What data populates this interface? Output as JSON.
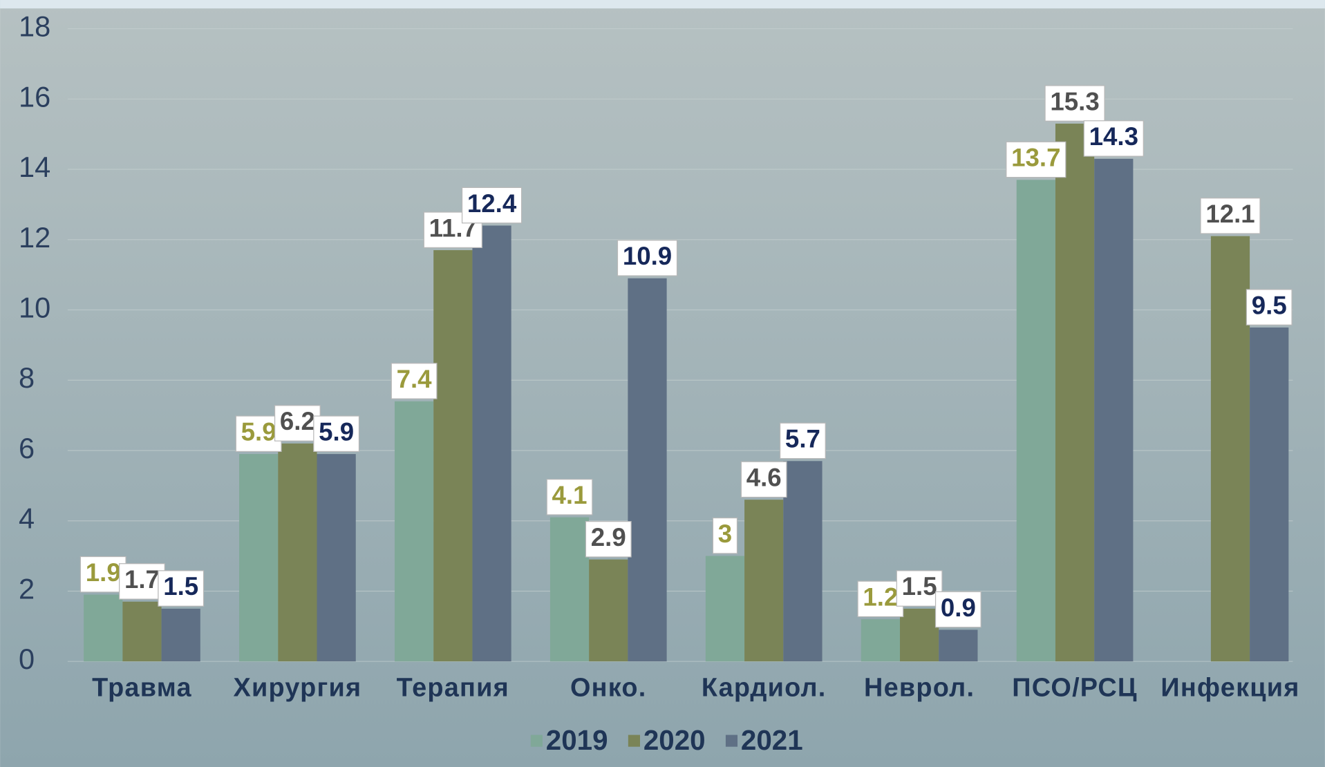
{
  "chart_data": {
    "type": "bar",
    "categories": [
      "Травма",
      "Хирургия",
      "Терапия",
      "Онко.",
      "Кардиол.",
      "Неврол.",
      "ПСО/РСЦ",
      "Инфекция"
    ],
    "series": [
      {
        "name": "2019",
        "color": "#80a898",
        "label_color": "#9a9a3c",
        "values": [
          1.9,
          5.9,
          7.4,
          4.1,
          3,
          1.2,
          13.7,
          null
        ]
      },
      {
        "name": "2020",
        "color": "#7a8457",
        "label_color": "#505050",
        "values": [
          1.7,
          6.2,
          11.7,
          2.9,
          4.6,
          1.5,
          15.3,
          12.1
        ]
      },
      {
        "name": "2021",
        "color": "#5f7085",
        "label_color": "#16285a",
        "values": [
          1.5,
          5.9,
          12.4,
          10.9,
          5.7,
          0.9,
          14.3,
          9.5
        ]
      }
    ],
    "ylim": [
      0,
      18
    ],
    "yticks": [
      0,
      2,
      4,
      6,
      8,
      10,
      12,
      14,
      16,
      18
    ],
    "grid": true,
    "legend": "bottom"
  }
}
